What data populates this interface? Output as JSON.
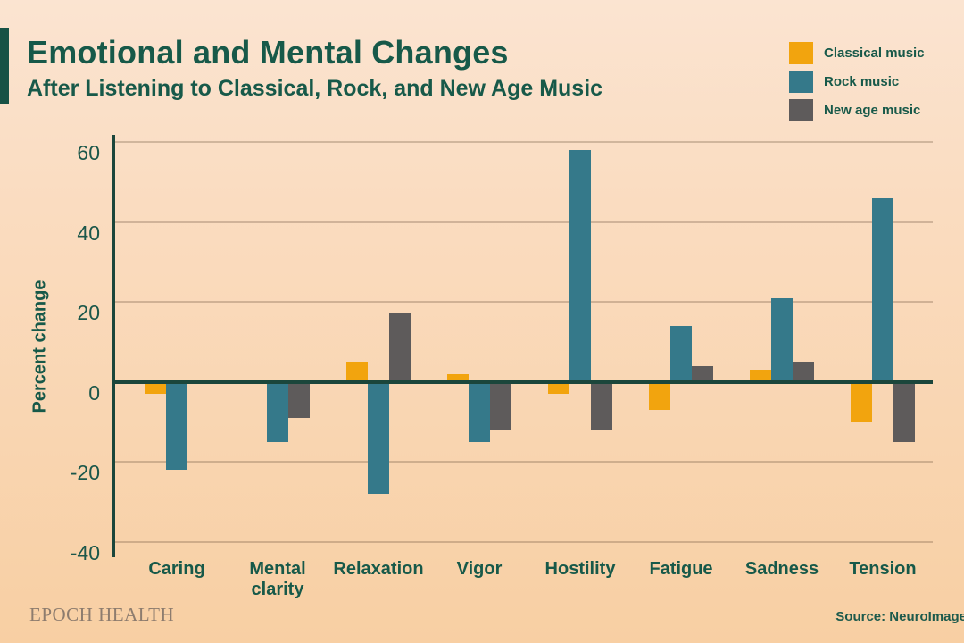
{
  "header": {
    "title": "Emotional and Mental Changes",
    "subtitle": "After Listening to Classical, Rock, and New Age Music"
  },
  "chart_data": {
    "type": "bar",
    "title": "Emotional and Mental Changes",
    "subtitle": "After Listening to Classical, Rock, and New Age Music",
    "ylabel": "Percent change",
    "xlabel": "",
    "categories": [
      "Caring",
      "Mental clarity",
      "Relaxation",
      "Vigor",
      "Hostility",
      "Fatigue",
      "Sadness",
      "Tension"
    ],
    "series": [
      {
        "name": "Classical music",
        "color": "#f2a40e",
        "values": [
          -3,
          0,
          5,
          2,
          -3,
          -7,
          3,
          -10
        ]
      },
      {
        "name": "Rock music",
        "color": "#35798a",
        "values": [
          -22,
          -15,
          -28,
          -15,
          58,
          14,
          21,
          46
        ]
      },
      {
        "name": "New age music",
        "color": "#5e5b5b",
        "values": [
          0,
          -9,
          17,
          -12,
          -12,
          4,
          5,
          -15
        ]
      }
    ],
    "yticks": [
      60,
      40,
      20,
      0,
      -20,
      -40
    ],
    "ylim": [
      -44,
      62
    ],
    "grid": true,
    "legend_position": "top-right",
    "units": "percent"
  },
  "footer": {
    "brand": "EPOCH HEALTH",
    "source": "Source: NeuroImage"
  }
}
